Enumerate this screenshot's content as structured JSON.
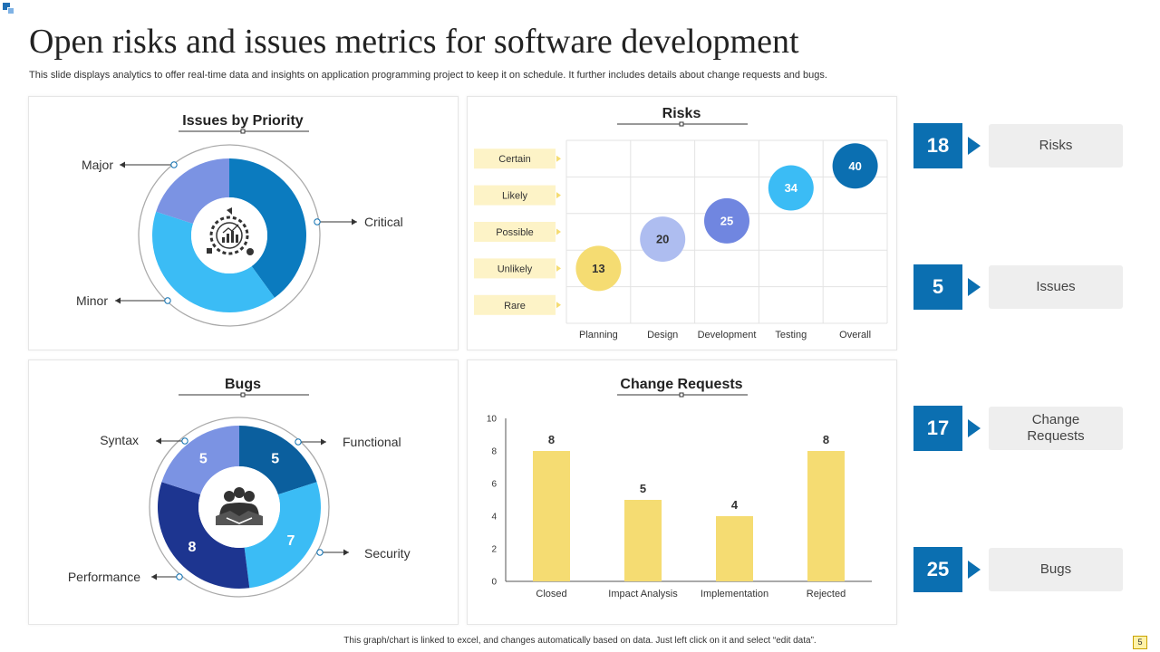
{
  "header": {
    "title": "Open risks and issues metrics for software development",
    "subtitle": "This slide displays analytics to offer real-time data and insights on application programming project to keep it on schedule. It further includes details about change requests and bugs."
  },
  "colors": {
    "accent": "#0b6fb1",
    "yellow": "#f5dc72",
    "light_yellow": "#fdf3c7"
  },
  "issues_panel": {
    "title": "Issues by Priority",
    "center_icon": "analytics-gear-icon"
  },
  "bugs_panel": {
    "title": "Bugs",
    "center_icon": "handshake-team-icon"
  },
  "risks_panel": {
    "title": "Risks"
  },
  "change_panel": {
    "title": "Change Requests"
  },
  "kpis": [
    {
      "value": "18",
      "label": "Risks"
    },
    {
      "value": "5",
      "label": "Issues"
    },
    {
      "value": "17",
      "label": "Change Requests"
    },
    {
      "value": "25",
      "label": "Bugs"
    }
  ],
  "footer": {
    "note": "This graph/chart is linked to excel, and changes automatically based on data. Just left click on it and select “edit data”.",
    "page": "5"
  },
  "chart_data": [
    {
      "type": "pie",
      "title": "Issues by Priority",
      "donut": true,
      "categories": [
        "Critical",
        "Minor",
        "Major"
      ],
      "values": [
        2,
        2,
        1
      ],
      "colors": [
        "#0b7bbf",
        "#3bbcf5",
        "#7b93e3"
      ],
      "labels": [
        "Major",
        "Critical",
        "Minor"
      ]
    },
    {
      "type": "pie",
      "title": "Bugs",
      "donut": true,
      "categories": [
        "Functional",
        "Security",
        "Performance",
        "Syntax"
      ],
      "values": [
        5,
        7,
        8,
        5
      ],
      "colors": [
        "#0b5f9e",
        "#3bbcf5",
        "#1d3590",
        "#7b93e3"
      ],
      "labels": [
        "Syntax",
        "Functional",
        "Security",
        "Performance"
      ]
    },
    {
      "type": "scatter",
      "title": "Risks",
      "x_categories": [
        "Planning",
        "Design",
        "Development",
        "Testing",
        "Overall"
      ],
      "y_categories": [
        "Rare",
        "Unlikely",
        "Possible",
        "Likely",
        "Certain"
      ],
      "points": [
        {
          "x": "Planning",
          "y": 1.5,
          "value": "13",
          "color": "#f5dc72",
          "text_color": "#333333"
        },
        {
          "x": "Design",
          "y": 2.3,
          "value": "20",
          "color": "#aebdf0",
          "text_color": "#333333"
        },
        {
          "x": "Development",
          "y": 2.8,
          "value": "25",
          "color": "#7086e0",
          "text_color": "#ffffff"
        },
        {
          "x": "Testing",
          "y": 3.7,
          "value": "34",
          "color": "#3bbcf5",
          "text_color": "#ffffff"
        },
        {
          "x": "Overall",
          "y": 4.3,
          "value": "40",
          "color": "#0b6fb1",
          "text_color": "#ffffff"
        }
      ]
    },
    {
      "type": "bar",
      "title": "Change Requests",
      "categories": [
        "Closed",
        "Impact Analysis",
        "Implementation",
        "Rejected"
      ],
      "values": [
        8,
        5,
        4,
        8
      ],
      "ylim": [
        0,
        10
      ],
      "yticks": [
        "0",
        "2",
        "4",
        "6",
        "8",
        "10"
      ],
      "color": "#f5dc72"
    }
  ]
}
